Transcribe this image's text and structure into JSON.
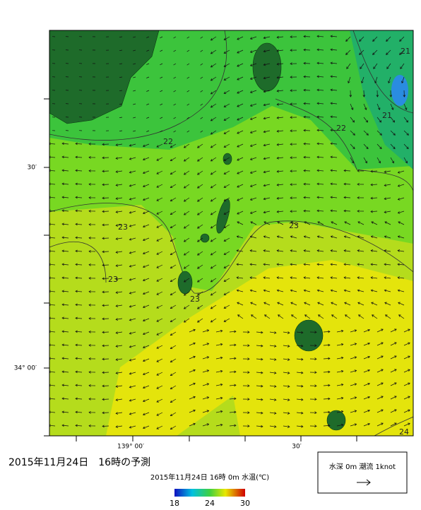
{
  "map": {
    "title": "2015年11月24日　16時の予測",
    "colorbar": {
      "caption": "2015年11月24日 16時 0m 水温(℃)",
      "ticks": [
        18,
        24,
        30
      ]
    },
    "lat_labels": [
      "30′",
      "34° 00′"
    ],
    "lon_labels": [
      "139° 00′",
      "30′"
    ],
    "contour_labels": [
      "21",
      "21",
      "22",
      "22",
      "23",
      "23",
      "23",
      "23",
      "24"
    ],
    "legend": "水深 0m 潮流 1knot"
  }
}
